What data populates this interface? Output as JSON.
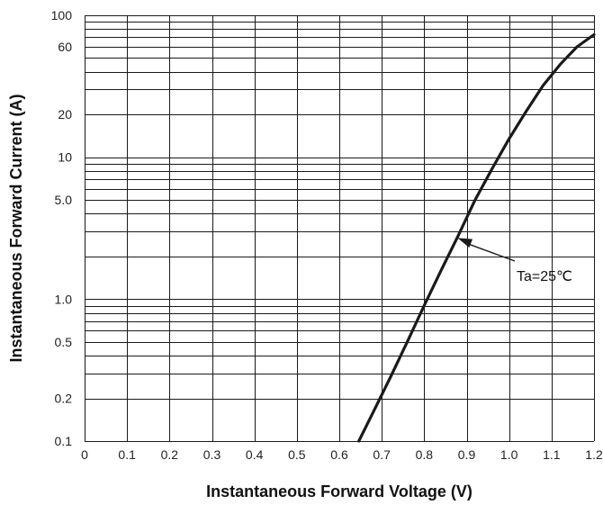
{
  "chart_data": {
    "type": "line",
    "title": "",
    "xlabel": "Instantaneous Forward Voltage (V)",
    "ylabel": "Instantaneous Forward Current (A)",
    "x_scale": "linear",
    "y_scale": "log",
    "xlim": [
      0,
      1.2
    ],
    "ylim": [
      0.1,
      100
    ],
    "x_ticks": [
      "0",
      "0.1",
      "0.2",
      "0.3",
      "0.4",
      "0.5",
      "0.6",
      "0.7",
      "0.8",
      "0.9",
      "1.0",
      "1.1",
      "1.2"
    ],
    "y_ticks": [
      "0.1",
      "0.2",
      "0.5",
      "1.0",
      "5.0",
      "10",
      "20",
      "60",
      "100"
    ],
    "grid": true,
    "series": [
      {
        "x": [
          0.646,
          0.68,
          0.72,
          0.76,
          0.8,
          0.84,
          0.88,
          0.92,
          0.96,
          1.0,
          1.04,
          1.08,
          1.12,
          1.16,
          1.2
        ],
        "y": [
          0.1,
          0.16,
          0.28,
          0.5,
          0.9,
          1.6,
          2.8,
          5.0,
          8.3,
          13.5,
          21,
          32,
          45,
          60,
          73
        ]
      }
    ],
    "annotations": [
      {
        "text": "Ta=25℃",
        "arrow_to": [
          0.87,
          2.7
        ]
      }
    ],
    "color": "#1a1a1a"
  }
}
